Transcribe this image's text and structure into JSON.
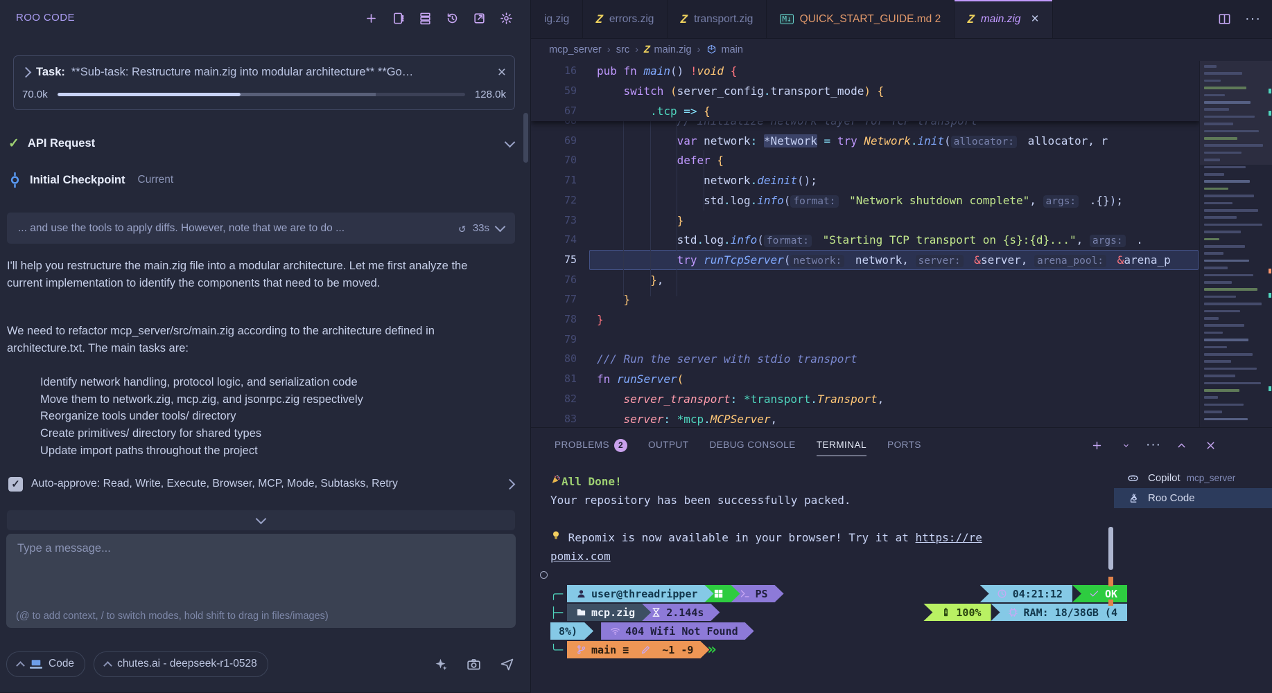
{
  "roo_panel": {
    "title": "ROO CODE",
    "toolbar": [
      "new-task",
      "prompts",
      "mcp-servers",
      "history",
      "open-external",
      "settings"
    ],
    "task": {
      "label": "Task:",
      "text": "**Sub-task: Restructure main.zig into modular architecture** **Go…",
      "tokens_used": "70.0k",
      "tokens_total": "128.0k"
    },
    "api_request": {
      "label": "API Request"
    },
    "checkpoint": {
      "label": "Initial Checkpoint",
      "status": "Current"
    },
    "quote": {
      "text": "... and use the tools to apply diffs. However, note that we are to do ...",
      "duration": "33s"
    },
    "messages": {
      "para1": "I'll help you restructure the main.zig file into a modular architecture. Let me first analyze the current implementation to identify the components that need to be moved.",
      "para2": "We need to refactor mcp_server/src/main.zig according to the architecture defined in architecture.txt. The main tasks are:",
      "list": [
        "Identify network handling, protocol logic, and serialization code",
        "Move them to network.zig, mcp.zig, and jsonrpc.zig respectively",
        "Reorganize tools under tools/ directory",
        "Create primitives/ directory for shared types",
        "Update import paths throughout the project"
      ]
    },
    "auto_approve": "Auto-approve: Read, Write, Execute, Browser, MCP, Mode, Subtasks, Retry",
    "input": {
      "placeholder": "Type a message...",
      "hint": "(@ to add context, / to switch modes, hold shift to drag in files/images)"
    },
    "footer": {
      "mode": "Code",
      "model": "chutes.ai - deepseek-r1-0528",
      "icons": [
        "sparkle",
        "camera",
        "send"
      ]
    }
  },
  "editor": {
    "tabs": [
      {
        "label": "ig.zig",
        "icon": null,
        "active": false
      },
      {
        "label": "errors.zig",
        "icon": "zig",
        "active": false
      },
      {
        "label": "transport.zig",
        "icon": "zig",
        "active": false
      },
      {
        "label": "QUICK_START_GUIDE.md 2",
        "icon": "md",
        "active": false,
        "cls": "md-tab"
      },
      {
        "label": "main.zig",
        "icon": "zig",
        "active": true,
        "closable": true
      }
    ],
    "actions": [
      "split-editor",
      "more"
    ],
    "breadcrumbs": [
      {
        "label": "mcp_server"
      },
      {
        "label": "src"
      },
      {
        "label": "main.zig",
        "icon": "zig"
      },
      {
        "label": "main",
        "icon": "symbol"
      }
    ],
    "sticky": [
      {
        "n": "16",
        "tokens": [
          [
            "kw",
            "pub"
          ],
          [
            "pl",
            " "
          ],
          [
            "kw",
            "fn"
          ],
          [
            "pl",
            " "
          ],
          [
            "fn",
            "main"
          ],
          [
            "pu",
            "()"
          ],
          [
            "pl",
            " "
          ],
          [
            "red",
            "!"
          ],
          [
            "type",
            "void"
          ],
          [
            "pl",
            " "
          ],
          [
            "red",
            "{"
          ]
        ]
      },
      {
        "n": "59",
        "tokens": [
          [
            "pl",
            "    "
          ],
          [
            "kw",
            "switch"
          ],
          [
            "pl",
            " "
          ],
          [
            "yb",
            "("
          ],
          [
            "pl",
            "server_config"
          ],
          [
            "op",
            "."
          ],
          [
            "pl",
            "transport_mode"
          ],
          [
            "yb",
            ")"
          ],
          [
            "pl",
            " "
          ],
          [
            "yb",
            "{"
          ]
        ]
      },
      {
        "n": "67",
        "tokens": [
          [
            "pl",
            "        "
          ],
          [
            "enm",
            ".tcp"
          ],
          [
            "pl",
            " "
          ],
          [
            "op",
            "=>"
          ],
          [
            "pl",
            " "
          ],
          [
            "yb",
            "{"
          ]
        ]
      }
    ],
    "lines": [
      {
        "n": "68",
        "tokens": [
          [
            "pl",
            "            "
          ],
          [
            "cmtd",
            "// initialize network layer for TCP transport"
          ]
        ]
      },
      {
        "n": "69",
        "tokens": [
          [
            "pl",
            "            "
          ],
          [
            "kw",
            "var"
          ],
          [
            "pl",
            " network"
          ],
          [
            "op",
            ":"
          ],
          [
            "pl",
            " "
          ],
          [
            "hl",
            "*Network"
          ],
          [
            "pl",
            " "
          ],
          [
            "op",
            "="
          ],
          [
            "pl",
            " "
          ],
          [
            "kw",
            "try"
          ],
          [
            "pl",
            " "
          ],
          [
            "type",
            "Network"
          ],
          [
            "op",
            "."
          ],
          [
            "fn",
            "init"
          ],
          [
            "pu",
            "("
          ],
          [
            "inlay",
            "allocator:"
          ],
          [
            "pl",
            " allocator, r"
          ]
        ]
      },
      {
        "n": "70",
        "tokens": [
          [
            "pl",
            "            "
          ],
          [
            "kw",
            "defer"
          ],
          [
            "pl",
            " "
          ],
          [
            "yb",
            "{"
          ]
        ]
      },
      {
        "n": "71",
        "tokens": [
          [
            "pl",
            "                network"
          ],
          [
            "op",
            "."
          ],
          [
            "fn",
            "deinit"
          ],
          [
            "pu",
            "()"
          ],
          [
            "pl",
            ";"
          ]
        ]
      },
      {
        "n": "72",
        "tokens": [
          [
            "pl",
            "                std"
          ],
          [
            "op",
            "."
          ],
          [
            "pl",
            "log"
          ],
          [
            "op",
            "."
          ],
          [
            "fn",
            "info"
          ],
          [
            "pu",
            "("
          ],
          [
            "inlay",
            "format:"
          ],
          [
            "pl",
            " "
          ],
          [
            "str",
            "\"Network shutdown complete\""
          ],
          [
            "pl",
            ", "
          ],
          [
            "inlay",
            "args:"
          ],
          [
            "pl",
            " .{}"
          ],
          [
            "pu",
            ")"
          ],
          [
            "pl",
            ";"
          ]
        ]
      },
      {
        "n": "73",
        "tokens": [
          [
            "pl",
            "            "
          ],
          [
            "yb",
            "}"
          ]
        ]
      },
      {
        "n": "74",
        "tokens": [
          [
            "pl",
            "            std"
          ],
          [
            "op",
            "."
          ],
          [
            "pl",
            "log"
          ],
          [
            "op",
            "."
          ],
          [
            "fn",
            "info"
          ],
          [
            "pu",
            "("
          ],
          [
            "inlay",
            "format:"
          ],
          [
            "pl",
            " "
          ],
          [
            "str",
            "\"Starting TCP transport on {s}:{d}...\""
          ],
          [
            "pl",
            ", "
          ],
          [
            "inlay",
            "args:"
          ],
          [
            "pl",
            " ."
          ]
        ]
      },
      {
        "n": "75",
        "current": true,
        "tokens": [
          [
            "pl",
            "            "
          ],
          [
            "kw",
            "try"
          ],
          [
            "pl",
            " "
          ],
          [
            "fn",
            "runTcpServer"
          ],
          [
            "pu",
            "("
          ],
          [
            "inlay",
            "network:"
          ],
          [
            "pl",
            " network, "
          ],
          [
            "inlay",
            "server:"
          ],
          [
            "pl",
            " "
          ],
          [
            "red",
            "&"
          ],
          [
            "pl",
            "server, "
          ],
          [
            "inlay",
            "arena_pool:"
          ],
          [
            "pl",
            " "
          ],
          [
            "red",
            "&"
          ],
          [
            "pl",
            "arena_p"
          ]
        ]
      },
      {
        "n": "76",
        "tokens": [
          [
            "pl",
            "        "
          ],
          [
            "yb",
            "}"
          ],
          [
            "pl",
            ","
          ]
        ]
      },
      {
        "n": "77",
        "tokens": [
          [
            "pl",
            "    "
          ],
          [
            "yb",
            "}"
          ]
        ]
      },
      {
        "n": "78",
        "tokens": [
          [
            "red",
            "}"
          ]
        ]
      },
      {
        "n": "79",
        "tokens": []
      },
      {
        "n": "80",
        "tokens": [
          [
            "cmt",
            "/// Run the server with stdio transport"
          ]
        ]
      },
      {
        "n": "81",
        "tokens": [
          [
            "kw",
            "fn"
          ],
          [
            "pl",
            " "
          ],
          [
            "fn",
            "runServer"
          ],
          [
            "yb",
            "("
          ]
        ]
      },
      {
        "n": "82",
        "tokens": [
          [
            "pl",
            "    "
          ],
          [
            "prm",
            "server_transport"
          ],
          [
            "op",
            ":"
          ],
          [
            "pl",
            " "
          ],
          [
            "teal",
            "*transport"
          ],
          [
            "op",
            "."
          ],
          [
            "type",
            "Transport"
          ],
          [
            "pl",
            ","
          ]
        ]
      },
      {
        "n": "83",
        "tokens": [
          [
            "pl",
            "    "
          ],
          [
            "prm",
            "server"
          ],
          [
            "op",
            ":"
          ],
          [
            "pl",
            " "
          ],
          [
            "teal",
            "*mcp"
          ],
          [
            "op",
            "."
          ],
          [
            "type",
            "MCPServer"
          ],
          [
            "pl",
            ","
          ]
        ]
      }
    ]
  },
  "panel": {
    "tabs": [
      {
        "label": "PROBLEMS",
        "badge": "2"
      },
      {
        "label": "OUTPUT"
      },
      {
        "label": "DEBUG CONSOLE"
      },
      {
        "label": "TERMINAL",
        "active": true
      },
      {
        "label": "PORTS"
      }
    ],
    "actions": [
      "plus",
      "caret-down",
      "more",
      "chevron-up",
      "close"
    ],
    "terminal_lines": [
      {
        "left": [
          {
            "i": "party"
          },
          {
            "c": "tg",
            "t": " All Done!"
          }
        ]
      },
      {
        "left": [
          {
            "c": "tp",
            "t": "Your repository has been successfully packed."
          }
        ]
      },
      {
        "left": []
      },
      {
        "left": [
          {
            "i": "bulb"
          },
          {
            "c": "tp",
            "t": " Repomix is now available in your browser! Try it at "
          },
          {
            "c": "tp u",
            "t": "https://re",
            "name": "repomix-link"
          }
        ]
      },
      {
        "left": [
          {
            "c": "tp u",
            "t": "pomix.com",
            "name": "repomix-link"
          }
        ]
      },
      {
        "left": [
          {
            "c": "circ",
            "name": "command-decoration"
          }
        ]
      },
      {
        "left": [
          {
            "c": "conn",
            "t": "╭─"
          },
          {
            "c": "seg s-blue",
            "i": "person",
            "t": "user@threadripper"
          },
          {
            "c": "seg s-green",
            "i": "windows"
          },
          {
            "c": "seg s-purple",
            "i": "prompt",
            "t": "PS"
          }
        ],
        "right": [
          {
            "c": "seg rseg s-blue",
            "i": "clock",
            "t": "04:21:12"
          },
          {
            "c": "seg rseg s-green",
            "i": "check",
            "t": "OK"
          }
        ]
      },
      {
        "left": [
          {
            "c": "conn",
            "t": "├─"
          },
          {
            "c": "seg s-slate",
            "i": "folder",
            "t": "mcp.zig"
          },
          {
            "c": "seg s-purple",
            "i": "hourglass",
            "t": "2.144s"
          }
        ],
        "right": [
          {
            "c": "seg rseg s-lime",
            "i": "battery",
            "t": "100%"
          },
          {
            "c": "seg rseg s-blue",
            "i": "chip",
            "t": "RAM: 18/38GB (4"
          }
        ]
      },
      {
        "left": [
          {
            "c": "seg s-blue",
            "t": "8%)"
          },
          {
            "c": "conn",
            "t": " "
          },
          {
            "c": "seg s-purple",
            "i": "wifi",
            "t": "404 Wifi Not Found"
          }
        ]
      },
      {
        "left": [
          {
            "c": "conn",
            "t": "╰─"
          },
          {
            "c": "seg s-orange",
            "parts": [
              {
                "i": "git-branch"
              },
              {
                "t": "main ≡ "
              },
              {
                "i": "pencil"
              },
              {
                "t": " ~1 -9"
              }
            ]
          },
          {
            "c": "chev-green",
            "t": "»"
          }
        ]
      }
    ],
    "sidebar": [
      {
        "icon": "copilot",
        "label": "Copilot",
        "detail": "mcp_server",
        "selected": false
      },
      {
        "icon": "roo",
        "label": "Roo Code",
        "detail": "",
        "selected": true
      }
    ]
  }
}
